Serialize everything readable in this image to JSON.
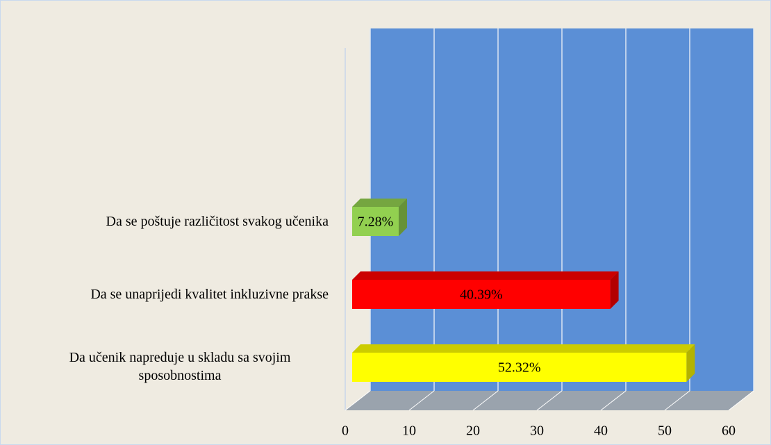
{
  "chart_data": {
    "type": "bar",
    "orientation": "horizontal",
    "categories": [
      "Da se poštuje različitost svakog učenika",
      "Da se unaprijedi kvalitet inkluzivne prakse",
      "Da učenik napreduje u skladu sa svojim sposobnostima"
    ],
    "values": [
      7.28,
      40.39,
      52.32
    ],
    "value_labels": [
      "7.28%",
      "40.39%",
      "52.32%"
    ],
    "colors": [
      "#92d050",
      "#ff0000",
      "#ffff00"
    ],
    "xlim": [
      0,
      60
    ],
    "xticks": [
      0,
      10,
      20,
      30,
      40,
      50,
      60
    ],
    "grid": true
  }
}
